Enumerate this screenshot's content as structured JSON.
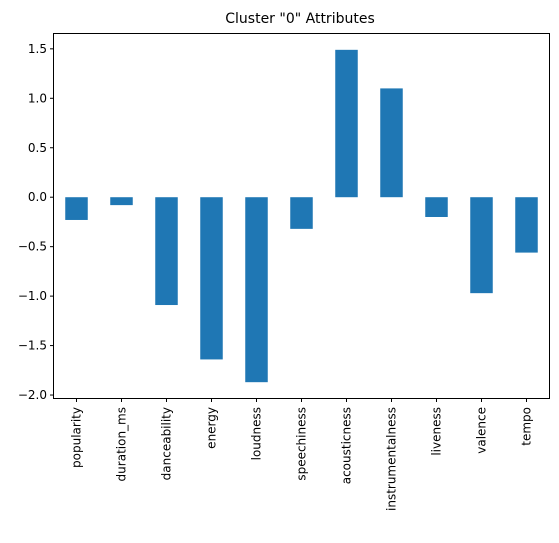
{
  "chart_data": {
    "type": "bar",
    "title": "Cluster \"0\" Attributes",
    "xlabel": "",
    "ylabel": "",
    "categories": [
      "popularity",
      "duration_ms",
      "danceability",
      "energy",
      "loudness",
      "speechiness",
      "acousticness",
      "instrumentalness",
      "liveness",
      "valence",
      "tempo"
    ],
    "values": [
      -0.23,
      -0.08,
      -1.09,
      -1.64,
      -1.87,
      -0.32,
      1.49,
      1.1,
      -0.2,
      -0.97,
      -0.56
    ],
    "ylim": [
      -2.03,
      1.65
    ],
    "yticks": [
      -2.0,
      -1.5,
      -1.0,
      -0.5,
      0.0,
      0.5,
      1.0,
      1.5
    ],
    "ytick_labels": [
      "−2.0",
      "−1.5",
      "−1.0",
      "−0.5",
      "0.0",
      "0.5",
      "1.0",
      "1.5"
    ],
    "bar_color": "#1f77b4",
    "grid": false,
    "legend": "none"
  }
}
